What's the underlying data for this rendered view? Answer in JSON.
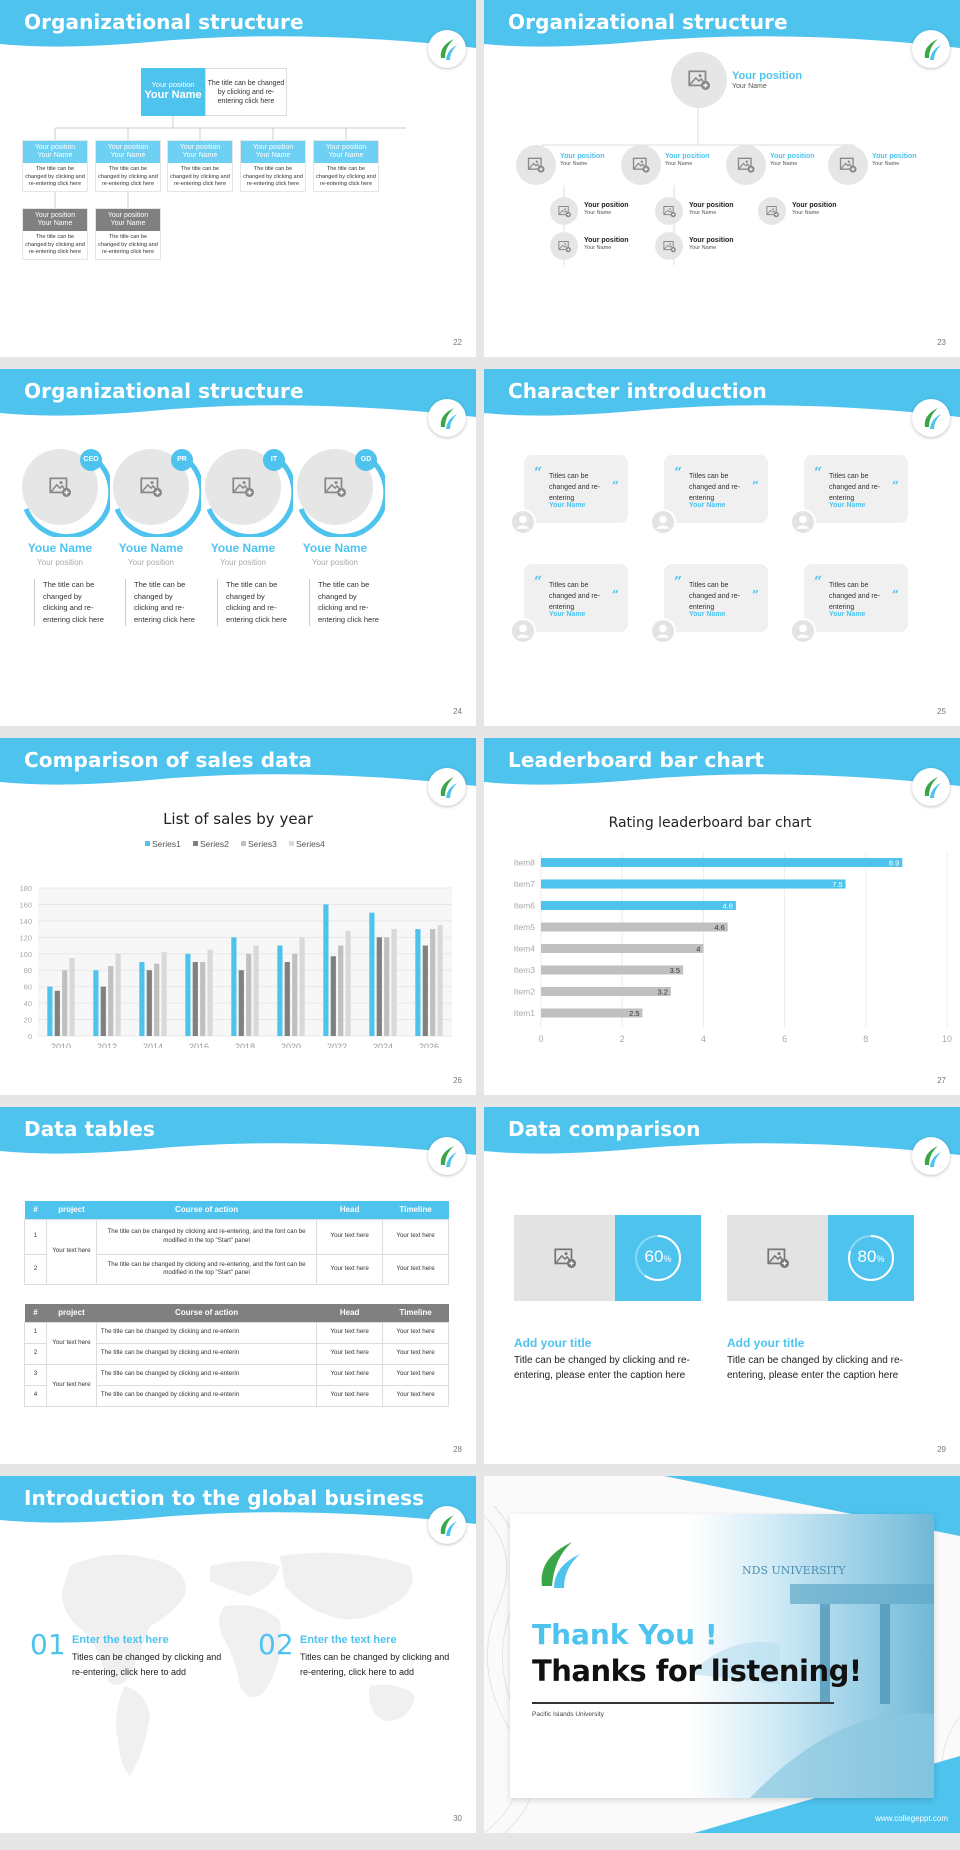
{
  "colors": {
    "accent": "#4dc3ee",
    "gray": "#808080",
    "light_gray": "#e6e6e6",
    "logo_green": "#3aa64a"
  },
  "slides": {
    "s22": {
      "title": "Organizational structure",
      "page": "22",
      "top_position": "Your position",
      "top_name": "Your Name",
      "top_desc": "The title can be changed by clicking and re-entering click here",
      "boxes": [
        {
          "position": "Your position",
          "name": "Your Name",
          "desc": "The title can be changed by clicking and re-entering click here"
        },
        {
          "position": "Your position",
          "name": "Your Name",
          "desc": "The title can be changed by clicking and re-entering click here"
        },
        {
          "position": "Your position",
          "name": "Your Name",
          "desc": "The title can be changed by clicking and re-entering click here"
        },
        {
          "position": "Your position",
          "name": "Your Name",
          "desc": "The title can be changed by clicking and re-entering click here"
        },
        {
          "position": "Your position",
          "name": "Your Name",
          "desc": "The title can be changed by clicking and re-entering click here"
        },
        {
          "position": "Your position",
          "name": "Your Name",
          "desc": "The title can be changed by clicking and re-entering click here"
        },
        {
          "position": "Your position",
          "name": "Your Name",
          "desc": "The title can be changed by clicking and re-entering click here"
        }
      ]
    },
    "s23": {
      "title": "Organizational structure",
      "page": "23",
      "top": {
        "position": "Your position",
        "name": "Your Name"
      },
      "level2": [
        {
          "position": "Your position",
          "name": "Your Name"
        },
        {
          "position": "Your position",
          "name": "Your Name"
        },
        {
          "position": "Your position",
          "name": "Your Name"
        },
        {
          "position": "Your position",
          "name": "Your Name"
        }
      ],
      "level3": [
        {
          "position": "Your position",
          "name": "Your Name"
        },
        {
          "position": "Your position",
          "name": "Your Name"
        },
        {
          "position": "Your position",
          "name": "Your Name"
        },
        {
          "position": "Your position",
          "name": "Your Name"
        },
        {
          "position": "Your position",
          "name": "Your Name"
        }
      ]
    },
    "s24": {
      "title": "Organizational structure",
      "page": "24",
      "people": [
        {
          "badge": "CEO",
          "name": "Youe Name",
          "position": "Your position",
          "desc": "The title can be changed by clicking and re-entering click here"
        },
        {
          "badge": "PR",
          "name": "Youe Name",
          "position": "Your position",
          "desc": "The title can be changed by clicking and re-entering click here"
        },
        {
          "badge": "IT",
          "name": "Youe Name",
          "position": "Your position",
          "desc": "The title can be changed by clicking and re-entering click here"
        },
        {
          "badge": "GD",
          "name": "Youe Name",
          "position": "Your position",
          "desc": "The title can be changed by clicking and re-entering click here"
        }
      ]
    },
    "s25": {
      "title": "Character introduction",
      "page": "25",
      "cards": [
        {
          "text": "Titles can be changed and re-entering",
          "name": "Your Name"
        },
        {
          "text": "Titles can be changed and re-entering",
          "name": "Your Name"
        },
        {
          "text": "Titles can be changed and re-entering",
          "name": "Your Name"
        },
        {
          "text": "Titles can be changed and re-entering",
          "name": "Your Name"
        },
        {
          "text": "Titles can be changed and re-entering",
          "name": "Your Name"
        },
        {
          "text": "Titles can be changed and re-entering",
          "name": "Your Name"
        }
      ]
    },
    "s26": {
      "title": "Comparison of sales data",
      "page": "26"
    },
    "s27": {
      "title": "Leaderboard bar chart",
      "page": "27"
    },
    "s28": {
      "title": "Data tables",
      "page": "28",
      "headers": [
        "#",
        "project",
        "Course of action",
        "Head",
        "Timeline"
      ],
      "table1": {
        "project": "Your text here",
        "rows": [
          {
            "n": "1",
            "action": "The title can be changed by clicking and re-entering, and the font can be modified in the top \"Start\" panel",
            "head": "Your text here",
            "timeline": "Your text here"
          },
          {
            "n": "2",
            "action": "The title can be changed by clicking and re-entering, and the font can be modified in the top \"Start\" panel",
            "head": "Your text here",
            "timeline": "Your text here"
          }
        ]
      },
      "table2": {
        "project_a": "Your text here",
        "project_b": "Your text here",
        "rows": [
          {
            "n": "1",
            "action": "The title can be changed by clicking and re-enterin",
            "head": "Your text here",
            "timeline": "Your text here"
          },
          {
            "n": "2",
            "action": "The title can be changed by clicking and re-enterin",
            "head": "Your text here",
            "timeline": "Your text here"
          },
          {
            "n": "3",
            "action": "The title can be changed by clicking and re-enterin",
            "head": "Your text here",
            "timeline": "Your text here"
          },
          {
            "n": "4",
            "action": "The title can be changed by clicking and re-enterin",
            "head": "Your text here",
            "timeline": "Your text here"
          }
        ]
      }
    },
    "s29": {
      "title": "Data comparison",
      "page": "29",
      "items": [
        {
          "percent": 60,
          "value": "60",
          "unit": "%",
          "heading": "Add your title",
          "desc": "Title can be changed by clicking and re-entering, please enter the caption here"
        },
        {
          "percent": 80,
          "value": "80",
          "unit": "%",
          "heading": "Add your title",
          "desc": "Title can be changed by clicking and re-entering, please enter the caption here"
        }
      ]
    },
    "s30": {
      "title": "Introduction to the global business",
      "page": "30",
      "items": [
        {
          "num": "01",
          "heading": "Enter the text here",
          "desc": "Titles can be changed by clicking and re-entering, click here to add"
        },
        {
          "num": "02",
          "heading": "Enter the text here",
          "desc": "Titles can be changed by clicking and re-entering, click here to add"
        }
      ]
    },
    "s31": {
      "thank": "Thank You !",
      "thanks": "Thanks for listening!",
      "university": "Pacific Islands University",
      "photo_text": "NDS UNIVERSITY",
      "url": "www.collegeppt.com"
    }
  },
  "chart_data": [
    {
      "type": "bar",
      "title": "List of sales by year",
      "categories": [
        "2010",
        "2012",
        "2014",
        "2016",
        "2018",
        "2020",
        "2022",
        "2024",
        "2026"
      ],
      "series": [
        {
          "name": "Series1",
          "color": "#4dc3ee",
          "values": [
            60,
            80,
            90,
            100,
            120,
            110,
            160,
            150,
            130
          ]
        },
        {
          "name": "Series2",
          "color": "#808080",
          "values": [
            55,
            60,
            80,
            90,
            80,
            90,
            97,
            120,
            110
          ]
        },
        {
          "name": "Series3",
          "color": "#c0c0c0",
          "values": [
            80,
            85,
            88,
            90,
            100,
            100,
            110,
            120,
            130
          ]
        },
        {
          "name": "Series4",
          "color": "#d9d9d9",
          "values": [
            95,
            100,
            102,
            105,
            110,
            120,
            128,
            130,
            135
          ]
        }
      ],
      "ylim": [
        0,
        180
      ],
      "yticks": [
        0,
        20,
        40,
        60,
        80,
        100,
        120,
        140,
        160,
        180
      ],
      "legend": "top"
    },
    {
      "type": "bar",
      "orientation": "horizontal",
      "title": "Rating leaderboard bar chart",
      "categories": [
        "Item8",
        "Item7",
        "Item6",
        "Item5",
        "Item4",
        "Item3",
        "Item2",
        "Item1"
      ],
      "values": [
        8.9,
        7.5,
        4.8,
        4.6,
        4,
        3.5,
        3.2,
        2.5
      ],
      "labels": [
        "8.9",
        "7.5",
        "4.8",
        "4.6",
        "4",
        "3.5",
        "3.2",
        "2.5"
      ],
      "colors": [
        "#4dc3ee",
        "#4dc3ee",
        "#4dc3ee",
        "#c0c0c0",
        "#c0c0c0",
        "#c0c0c0",
        "#c0c0c0",
        "#c0c0c0"
      ],
      "xlim": [
        0,
        10
      ],
      "xticks": [
        0,
        2,
        4,
        6,
        8,
        10
      ]
    }
  ]
}
